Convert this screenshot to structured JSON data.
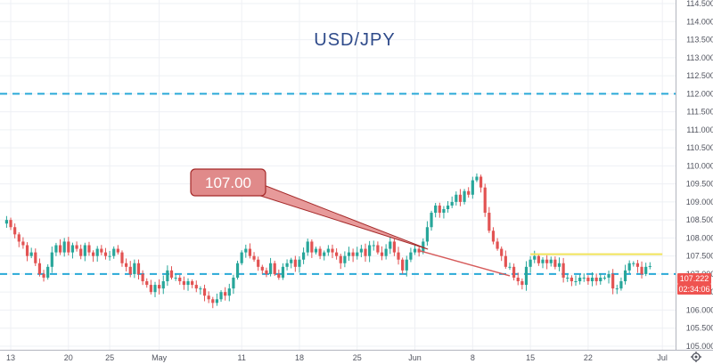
{
  "chart_data": {
    "type": "candlestick",
    "title": "USD/JPY",
    "y_range": [
      104.9,
      114.6
    ],
    "y_ticks": [
      "105.000",
      "105.500",
      "106.000",
      "106.500",
      "107.000",
      "107.500",
      "108.000",
      "108.500",
      "109.000",
      "109.500",
      "110.000",
      "110.500",
      "111.000",
      "111.500",
      "112.000",
      "112.500",
      "113.000",
      "113.500",
      "114.000",
      "114.500"
    ],
    "x_ticks": [
      {
        "label": "13",
        "t": 0
      },
      {
        "label": "20",
        "t": 7
      },
      {
        "label": "25",
        "t": 12
      },
      {
        "label": "May",
        "t": 18
      },
      {
        "label": "11",
        "t": 28
      },
      {
        "label": "18",
        "t": 35
      },
      {
        "label": "25",
        "t": 42
      },
      {
        "label": "Jun",
        "t": 49
      },
      {
        "label": "8",
        "t": 56
      },
      {
        "label": "15",
        "t": 63
      },
      {
        "label": "22",
        "t": 70
      },
      {
        "label": "Jul",
        "t": 79
      }
    ],
    "x_range": [
      -1.3,
      80.6
    ],
    "price_series": [
      [
        -1.0,
        108.4
      ],
      [
        -0.5,
        108.5
      ],
      [
        0,
        108.3
      ],
      [
        0.5,
        108.1
      ],
      [
        1,
        107.9
      ],
      [
        1.5,
        107.8
      ],
      [
        2,
        107.5
      ],
      [
        2.5,
        107.6
      ],
      [
        3,
        107.3
      ],
      [
        3.5,
        107.0
      ],
      [
        4,
        106.9
      ],
      [
        4.5,
        107.2
      ],
      [
        5,
        107.6
      ],
      [
        5.5,
        107.8
      ],
      [
        6,
        107.6
      ],
      [
        6.5,
        107.9
      ],
      [
        7,
        107.6
      ],
      [
        7.5,
        107.8
      ],
      [
        8,
        107.7
      ],
      [
        8.5,
        107.5
      ],
      [
        9,
        107.8
      ],
      [
        9.5,
        107.6
      ],
      [
        10,
        107.5
      ],
      [
        10.5,
        107.7
      ],
      [
        11,
        107.6
      ],
      [
        11.5,
        107.5
      ],
      [
        12,
        107.5
      ],
      [
        12.5,
        107.7
      ],
      [
        13,
        107.6
      ],
      [
        13.5,
        107.3
      ],
      [
        14,
        107.2
      ],
      [
        14.5,
        107.0
      ],
      [
        15,
        107.3
      ],
      [
        15.5,
        107.0
      ],
      [
        16,
        106.8
      ],
      [
        16.5,
        106.7
      ],
      [
        17,
        106.5
      ],
      [
        17.5,
        106.7
      ],
      [
        18,
        106.6
      ],
      [
        18.5,
        106.8
      ],
      [
        19,
        107.1
      ],
      [
        19.5,
        106.9
      ],
      [
        20,
        106.9
      ],
      [
        20.5,
        106.8
      ],
      [
        21,
        106.7
      ],
      [
        21.5,
        106.8
      ],
      [
        22,
        106.7
      ],
      [
        22.5,
        106.6
      ],
      [
        23,
        106.6
      ],
      [
        23.5,
        106.4
      ],
      [
        24,
        106.3
      ],
      [
        24.5,
        106.2
      ],
      [
        25,
        106.3
      ],
      [
        25.5,
        106.5
      ],
      [
        26,
        106.4
      ],
      [
        26.5,
        106.6
      ],
      [
        27,
        106.9
      ],
      [
        27.5,
        107.3
      ],
      [
        28,
        107.6
      ],
      [
        28.5,
        107.7
      ],
      [
        29,
        107.5
      ],
      [
        29.5,
        107.4
      ],
      [
        30,
        107.2
      ],
      [
        30.5,
        107.1
      ],
      [
        31,
        107.0
      ],
      [
        31.5,
        107.3
      ],
      [
        32,
        107.0
      ],
      [
        32.5,
        106.9
      ],
      [
        33,
        107.2
      ],
      [
        33.5,
        107.3
      ],
      [
        34,
        107.4
      ],
      [
        34.5,
        107.2
      ],
      [
        35,
        107.4
      ],
      [
        35.5,
        107.6
      ],
      [
        36,
        107.9
      ],
      [
        36.5,
        107.6
      ],
      [
        37,
        107.7
      ],
      [
        37.5,
        107.5
      ],
      [
        38,
        107.6
      ],
      [
        38.5,
        107.7
      ],
      [
        39,
        107.6
      ],
      [
        39.5,
        107.5
      ],
      [
        40,
        107.3
      ],
      [
        40.5,
        107.5
      ],
      [
        41,
        107.6
      ],
      [
        41.5,
        107.5
      ],
      [
        42,
        107.6
      ],
      [
        42.5,
        107.7
      ],
      [
        43,
        107.5
      ],
      [
        43.5,
        107.8
      ],
      [
        44,
        107.8
      ],
      [
        44.5,
        107.6
      ],
      [
        45,
        107.5
      ],
      [
        45.5,
        107.7
      ],
      [
        46,
        107.9
      ],
      [
        46.5,
        107.6
      ],
      [
        47,
        107.4
      ],
      [
        47.5,
        107.1
      ],
      [
        48,
        107.4
      ],
      [
        48.5,
        107.6
      ],
      [
        49,
        107.7
      ],
      [
        49.5,
        107.6
      ],
      [
        50,
        107.9
      ],
      [
        50.5,
        108.3
      ],
      [
        51,
        108.7
      ],
      [
        51.5,
        108.9
      ],
      [
        52,
        108.7
      ],
      [
        52.5,
        108.8
      ],
      [
        53,
        108.9
      ],
      [
        53.5,
        109.0
      ],
      [
        54,
        109.2
      ],
      [
        54.5,
        109.0
      ],
      [
        55,
        109.3
      ],
      [
        55.5,
        109.2
      ],
      [
        56,
        109.6
      ],
      [
        56.5,
        109.7
      ],
      [
        57,
        109.4
      ],
      [
        57.5,
        108.7
      ],
      [
        58,
        108.2
      ],
      [
        58.5,
        107.9
      ],
      [
        59,
        107.7
      ],
      [
        59.5,
        107.5
      ],
      [
        60,
        107.2
      ],
      [
        60.5,
        107.2
      ],
      [
        61,
        106.9
      ],
      [
        61.5,
        106.8
      ],
      [
        62,
        106.7
      ],
      [
        62.5,
        107.2
      ],
      [
        63,
        107.4
      ],
      [
        63.5,
        107.5
      ],
      [
        64,
        107.3
      ],
      [
        64.5,
        107.4
      ],
      [
        65,
        107.3
      ],
      [
        65.5,
        107.4
      ],
      [
        66,
        107.2
      ],
      [
        66.5,
        107.3
      ],
      [
        67,
        106.9
      ],
      [
        67.5,
        106.9
      ],
      [
        68,
        106.8
      ],
      [
        68.5,
        106.8
      ],
      [
        69,
        106.9
      ],
      [
        69.5,
        106.9
      ],
      [
        70,
        106.8
      ],
      [
        70.5,
        106.9
      ],
      [
        71,
        106.8
      ],
      [
        71.5,
        106.9
      ],
      [
        72,
        106.9
      ],
      [
        72.5,
        107.0
      ],
      [
        73,
        106.6
      ],
      [
        73.5,
        106.6
      ],
      [
        74,
        106.8
      ],
      [
        74.5,
        107.1
      ],
      [
        75,
        107.3
      ],
      [
        75.5,
        107.3
      ],
      [
        76,
        107.2
      ],
      [
        76.5,
        107.0
      ],
      [
        77,
        107.2
      ],
      [
        77.5,
        107.222
      ]
    ],
    "horizontal_levels": [
      {
        "value": 112.0,
        "style": "dashed",
        "color": "#29a9d8"
      },
      {
        "value": 107.0,
        "style": "dashed",
        "color": "#29a9d8"
      }
    ],
    "resistance_line": {
      "t_start": 63,
      "t_end": 79,
      "value": 107.55,
      "color": "#f1e35a"
    },
    "trend_line": {
      "t_start": 49.5,
      "v_start": 107.65,
      "t_end": 60.5,
      "v_end": 106.95,
      "color": "#d65b5b"
    },
    "callout": {
      "text": "107.00",
      "anchor_t": 34,
      "anchor_v": 107.6
    },
    "last_price": "107.222",
    "countdown": "02:34:06",
    "colors": {
      "up": "#27a69a",
      "down": "#e25353",
      "axis": "#b2b5be",
      "grid": "#eef0f4",
      "badge": "#ef5350"
    }
  }
}
